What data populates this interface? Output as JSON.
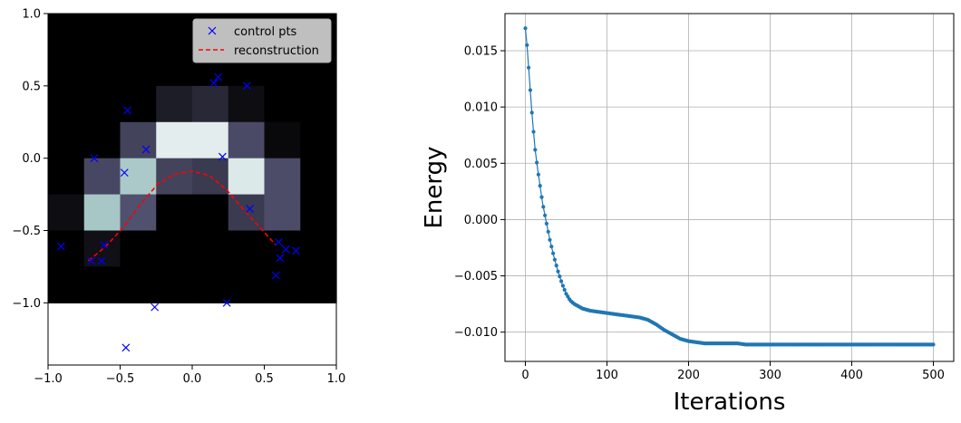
{
  "chart_data": [
    {
      "type": "heatmap",
      "title": "",
      "xlabel": "",
      "ylabel": "",
      "xlim": [
        -1.0,
        1.0
      ],
      "ylim": [
        -1.43,
        1.0
      ],
      "x_ticks": [
        -1.0,
        -0.5,
        0.0,
        0.5,
        1.0
      ],
      "x_tick_labels": [
        "−1.0",
        "−0.5",
        "0.0",
        "0.5",
        "1.0"
      ],
      "y_ticks": [
        -1.0,
        -0.5,
        0.0,
        0.5,
        1.0
      ],
      "y_tick_labels": [
        "−1.0",
        "−0.5",
        "0.0",
        "0.5",
        "1.0"
      ],
      "grid": false,
      "legend_position": "upper right",
      "heatmap": {
        "x_extent": [
          -1.0,
          1.0
        ],
        "y_extent": [
          -1.0,
          1.0
        ],
        "rows_top_to_bottom": [
          [
            0,
            0,
            0,
            0,
            0,
            0,
            0,
            0
          ],
          [
            0,
            0,
            0,
            0,
            0,
            0,
            0,
            0
          ],
          [
            0,
            0,
            0,
            0.13,
            0.18,
            0.06,
            0,
            0
          ],
          [
            0,
            0,
            0.3,
            0.92,
            0.92,
            0.33,
            0.04,
            0
          ],
          [
            0,
            0.32,
            0.76,
            0.3,
            0.26,
            0.9,
            0.34,
            0
          ],
          [
            0.06,
            0.75,
            0.36,
            0,
            0,
            0.26,
            0.34,
            0
          ],
          [
            0,
            0.07,
            0,
            0,
            0,
            0,
            0,
            0
          ],
          [
            0,
            0,
            0,
            0,
            0,
            0,
            0,
            0
          ]
        ],
        "colormap": "bone"
      },
      "series": [
        {
          "name": "control pts",
          "marker": "x",
          "color": "#0000ff",
          "points": [
            [
              -0.91,
              -0.61
            ],
            [
              -0.68,
              0.0
            ],
            [
              -0.7,
              -0.71
            ],
            [
              -0.63,
              -0.71
            ],
            [
              -0.61,
              -0.6
            ],
            [
              -0.47,
              -0.1
            ],
            [
              -0.45,
              0.33
            ],
            [
              -0.32,
              0.06
            ],
            [
              -0.26,
              -1.03
            ],
            [
              -0.46,
              -1.31
            ],
            [
              0.15,
              0.52
            ],
            [
              0.18,
              0.56
            ],
            [
              0.38,
              0.5
            ],
            [
              0.21,
              0.01
            ],
            [
              0.4,
              -0.35
            ],
            [
              0.24,
              -1.0
            ],
            [
              0.6,
              -0.58
            ],
            [
              0.61,
              -0.69
            ],
            [
              0.65,
              -0.63
            ],
            [
              0.58,
              -0.81
            ],
            [
              0.72,
              -0.64
            ]
          ]
        },
        {
          "name": "reconstruction",
          "style": "dashed",
          "color": "#ff0000",
          "x": [
            -0.72,
            -0.6,
            -0.48,
            -0.36,
            -0.24,
            -0.12,
            0.0,
            0.12,
            0.24,
            0.36,
            0.48,
            0.58
          ],
          "y": [
            -0.71,
            -0.61,
            -0.48,
            -0.32,
            -0.18,
            -0.11,
            -0.09,
            -0.12,
            -0.22,
            -0.36,
            -0.49,
            -0.6
          ]
        }
      ]
    },
    {
      "type": "line",
      "title": "",
      "xlabel": "Iterations",
      "ylabel": "Energy",
      "xlim": [
        -25,
        525
      ],
      "ylim": [
        -0.0126,
        0.0183
      ],
      "x_ticks": [
        0,
        100,
        200,
        300,
        400,
        500
      ],
      "x_tick_labels": [
        "0",
        "100",
        "200",
        "300",
        "400",
        "500"
      ],
      "y_ticks": [
        -0.01,
        -0.005,
        0.0,
        0.005,
        0.01,
        0.015
      ],
      "y_tick_labels": [
        "−0.010",
        "−0.005",
        "0.000",
        "0.005",
        "0.010",
        "0.015"
      ],
      "grid": true,
      "series": [
        {
          "marker": "dot",
          "color": "#1f77b4",
          "x": [
            0,
            2,
            4,
            6,
            8,
            10,
            12,
            15,
            18,
            21,
            25,
            30,
            35,
            40,
            45,
            50,
            55,
            60,
            70,
            80,
            90,
            100,
            110,
            120,
            130,
            140,
            150,
            160,
            170,
            180,
            190,
            200,
            210,
            220,
            230,
            240,
            250,
            260,
            270,
            280,
            300,
            350,
            400,
            450,
            500
          ],
          "y": [
            0.017,
            0.0155,
            0.0135,
            0.0115,
            0.0095,
            0.0078,
            0.0062,
            0.0045,
            0.003,
            0.0015,
            0.0,
            -0.0018,
            -0.0033,
            -0.0046,
            -0.0057,
            -0.0066,
            -0.0072,
            -0.0075,
            -0.0079,
            -0.0081,
            -0.0082,
            -0.0083,
            -0.0084,
            -0.0085,
            -0.0086,
            -0.0087,
            -0.0089,
            -0.0093,
            -0.0098,
            -0.0102,
            -0.0106,
            -0.0108,
            -0.0109,
            -0.011,
            -0.011,
            -0.011,
            -0.011,
            -0.011,
            -0.0111,
            -0.0111,
            -0.0111,
            -0.0111,
            -0.0111,
            -0.0111,
            -0.0111
          ]
        }
      ]
    }
  ]
}
